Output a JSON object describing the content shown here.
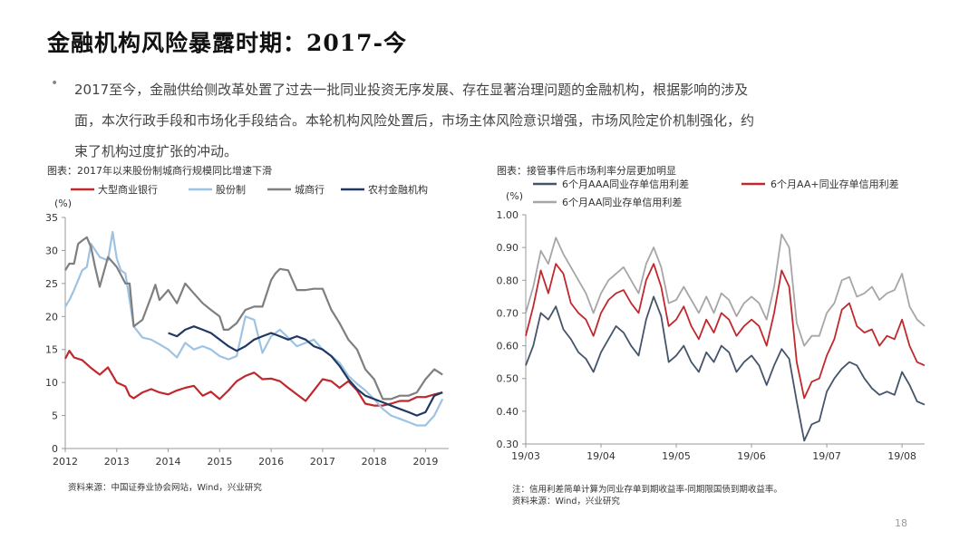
{
  "title": "金融机构风险暴露时期：2017-今",
  "bullet_lines": [
    "2017至今，金融供给侧改革处置了过去一批同业投资无序发展、存在显著治理问题的金融机构，根据影响的涉及",
    "面，本次行政手段和市场化手段结合。本轮机构风险处置后，市场主体风险意识增强，市场风险定价机制强化，约",
    "束了机构过度扩张的冲动。"
  ],
  "page_number": "18",
  "chart_data": [
    {
      "type": "line",
      "caption": "图表：2017年以来股份制城商行规模同比增速下滑",
      "ylabel": "(%)",
      "ylim": [
        0,
        35
      ],
      "yticks": [
        0,
        5,
        10,
        15,
        20,
        25,
        30,
        35
      ],
      "xlim": [
        2012,
        2019.45
      ],
      "xticks": [
        2012,
        2013,
        2014,
        2015,
        2016,
        2017,
        2018,
        2019
      ],
      "grid": false,
      "legend_position": "top",
      "source": "资料来源：中国证券业协会网站，Wind，兴业研究",
      "colors": [
        "#C0282D",
        "#9EC3E2",
        "#7F7F7F",
        "#1F3864"
      ],
      "series": [
        {
          "name": "大型商业银行",
          "color": "#C0282D",
          "x": [
            2012,
            2012.08,
            2012.17,
            2012.33,
            2012.5,
            2012.67,
            2012.83,
            2013,
            2013.17,
            2013.25,
            2013.33,
            2013.5,
            2013.67,
            2013.83,
            2014,
            2014.17,
            2014.33,
            2014.5,
            2014.67,
            2014.83,
            2015,
            2015.17,
            2015.33,
            2015.5,
            2015.67,
            2015.83,
            2016,
            2016.17,
            2016.33,
            2016.5,
            2016.67,
            2016.83,
            2017,
            2017.17,
            2017.33,
            2017.5,
            2017.67,
            2017.83,
            2018,
            2018.17,
            2018.33,
            2018.5,
            2018.67,
            2018.83,
            2019,
            2019.17,
            2019.33
          ],
          "values": [
            13.6,
            14.8,
            13.8,
            13.4,
            12.2,
            11.2,
            12.3,
            10,
            9.4,
            8,
            7.6,
            8.5,
            9,
            8.5,
            8.2,
            8.8,
            9.2,
            9.5,
            8,
            8.6,
            7.5,
            8.8,
            10.2,
            11,
            11.5,
            10.5,
            10.6,
            10.2,
            9.2,
            8.2,
            7.2,
            8.8,
            10.5,
            10.2,
            9.2,
            10.2,
            8.8,
            6.8,
            6.5,
            6.5,
            6.8,
            7.2,
            7.2,
            7.8,
            7.8,
            8.2,
            8.5
          ]
        },
        {
          "name": "股份制",
          "color": "#9EC3E2",
          "x": [
            2012,
            2012.08,
            2012.17,
            2012.33,
            2012.42,
            2012.5,
            2012.67,
            2012.83,
            2012.92,
            2013,
            2013.08,
            2013.17,
            2013.33,
            2013.5,
            2013.67,
            2013.83,
            2014,
            2014.17,
            2014.33,
            2014.5,
            2014.67,
            2014.83,
            2015,
            2015.17,
            2015.33,
            2015.5,
            2015.67,
            2015.83,
            2016,
            2016.17,
            2016.33,
            2016.5,
            2016.67,
            2016.83,
            2017,
            2017.17,
            2017.33,
            2017.5,
            2017.67,
            2017.83,
            2018,
            2018.17,
            2018.33,
            2018.5,
            2018.67,
            2018.83,
            2019,
            2019.17,
            2019.33
          ],
          "values": [
            21.5,
            22.5,
            24,
            27,
            27.5,
            31,
            29,
            28.5,
            32.8,
            28.8,
            27,
            26.5,
            18.5,
            16.8,
            16.5,
            15.8,
            15,
            13.8,
            16,
            15,
            15.5,
            15,
            14,
            13.5,
            14,
            20,
            19.5,
            14.5,
            17,
            18,
            16.8,
            15.5,
            16,
            16.5,
            15,
            14,
            13,
            11,
            9.8,
            8.8,
            7.5,
            6,
            5,
            4.5,
            4,
            3.5,
            3.5,
            5,
            7.5
          ]
        },
        {
          "name": "城商行",
          "color": "#7F7F7F",
          "x": [
            2012,
            2012.08,
            2012.17,
            2012.25,
            2012.33,
            2012.42,
            2012.5,
            2012.58,
            2012.67,
            2012.83,
            2013,
            2013.17,
            2013.25,
            2013.33,
            2013.5,
            2013.67,
            2013.75,
            2013.83,
            2014,
            2014.17,
            2014.33,
            2014.5,
            2014.67,
            2014.83,
            2015,
            2015.08,
            2015.17,
            2015.33,
            2015.5,
            2015.67,
            2015.83,
            2016,
            2016.08,
            2016.17,
            2016.33,
            2016.5,
            2016.67,
            2016.83,
            2017,
            2017.17,
            2017.33,
            2017.5,
            2017.67,
            2017.83,
            2018,
            2018.17,
            2018.33,
            2018.5,
            2018.67,
            2018.83,
            2019,
            2019.17,
            2019.33
          ],
          "values": [
            27,
            28,
            28,
            31,
            31.5,
            32,
            30.5,
            27.5,
            24.5,
            29,
            27.5,
            25,
            25,
            18.5,
            19.5,
            23,
            24.8,
            22.5,
            24,
            22,
            25,
            23.5,
            22,
            21,
            20,
            18,
            18,
            19,
            21,
            21.5,
            21.5,
            25.5,
            26.5,
            27.2,
            27,
            24,
            24,
            24.2,
            24.2,
            21,
            19,
            16.5,
            15,
            12,
            10.5,
            7.5,
            7.5,
            8,
            8,
            8.5,
            10.5,
            12,
            11.2
          ]
        },
        {
          "name": "农村金融机构",
          "color": "#1F3864",
          "x": [
            2014,
            2014.17,
            2014.33,
            2014.5,
            2014.67,
            2014.83,
            2015,
            2015.17,
            2015.33,
            2015.5,
            2015.67,
            2015.83,
            2016,
            2016.17,
            2016.33,
            2016.5,
            2016.67,
            2016.83,
            2017,
            2017.17,
            2017.33,
            2017.5,
            2017.67,
            2017.83,
            2018,
            2018.17,
            2018.33,
            2018.5,
            2018.67,
            2018.83,
            2019,
            2019.17,
            2019.33
          ],
          "values": [
            17.5,
            17,
            18,
            18.5,
            18,
            17.5,
            16.5,
            15.5,
            14.8,
            15.5,
            16.5,
            17,
            17.5,
            17,
            16.5,
            17,
            16.5,
            15.5,
            15,
            14,
            12.5,
            10.5,
            9,
            8,
            7.5,
            7,
            6.5,
            6,
            5.5,
            5,
            5.5,
            8,
            8.5
          ]
        }
      ]
    },
    {
      "type": "line",
      "caption": "图表：接管事件后市场利率分层更加明显",
      "ylabel": "(%)",
      "ylim": [
        0.3,
        1.0
      ],
      "yticks": [
        0.3,
        0.4,
        0.5,
        0.6,
        0.7,
        0.8,
        0.9,
        1.0
      ],
      "xticks": [
        "19/03",
        "19/04",
        "19/05",
        "19/06",
        "19/07",
        "19/08"
      ],
      "grid": false,
      "legend_position": "top",
      "note": "注：信用利差简单计算为同业存单到期收益率-同期限国债到期收益率。",
      "source": "资料来源：Wind，兴业研究",
      "colors": [
        "#44546A",
        "#C0282D",
        "#A6A6A6"
      ],
      "series": [
        {
          "name": "6个月AAA同业存单信用利差",
          "color": "#44546A",
          "x": [
            0,
            0.1,
            0.2,
            0.3,
            0.4,
            0.5,
            0.6,
            0.7,
            0.8,
            0.9,
            1.0,
            1.1,
            1.2,
            1.3,
            1.4,
            1.5,
            1.6,
            1.7,
            1.8,
            1.9,
            2.0,
            2.1,
            2.2,
            2.3,
            2.4,
            2.5,
            2.6,
            2.7,
            2.8,
            2.9,
            3.0,
            3.1,
            3.2,
            3.3,
            3.4,
            3.5,
            3.6,
            3.7,
            3.8,
            3.9,
            4.0,
            4.1,
            4.2,
            4.3,
            4.4,
            4.5,
            4.6,
            4.7,
            4.8,
            4.9,
            5.0,
            5.1,
            5.2,
            5.3
          ],
          "values": [
            0.54,
            0.6,
            0.7,
            0.68,
            0.72,
            0.65,
            0.62,
            0.58,
            0.56,
            0.52,
            0.58,
            0.62,
            0.66,
            0.64,
            0.6,
            0.57,
            0.68,
            0.75,
            0.69,
            0.55,
            0.57,
            0.6,
            0.55,
            0.52,
            0.58,
            0.55,
            0.6,
            0.58,
            0.52,
            0.55,
            0.57,
            0.54,
            0.48,
            0.54,
            0.59,
            0.56,
            0.43,
            0.31,
            0.36,
            0.37,
            0.46,
            0.5,
            0.53,
            0.55,
            0.54,
            0.5,
            0.47,
            0.45,
            0.46,
            0.45,
            0.52,
            0.48,
            0.43,
            0.42
          ]
        },
        {
          "name": "6个月AA+同业存单信用利差",
          "color": "#C0282D",
          "x": [
            0,
            0.1,
            0.2,
            0.3,
            0.4,
            0.5,
            0.6,
            0.7,
            0.8,
            0.9,
            1.0,
            1.1,
            1.2,
            1.3,
            1.4,
            1.5,
            1.6,
            1.7,
            1.8,
            1.9,
            2.0,
            2.1,
            2.2,
            2.3,
            2.4,
            2.5,
            2.6,
            2.7,
            2.8,
            2.9,
            3.0,
            3.1,
            3.2,
            3.3,
            3.4,
            3.5,
            3.6,
            3.7,
            3.8,
            3.9,
            4.0,
            4.1,
            4.2,
            4.3,
            4.4,
            4.5,
            4.6,
            4.7,
            4.8,
            4.9,
            5.0,
            5.1,
            5.2,
            5.3
          ],
          "values": [
            0.63,
            0.72,
            0.83,
            0.76,
            0.85,
            0.82,
            0.73,
            0.7,
            0.68,
            0.63,
            0.7,
            0.74,
            0.76,
            0.77,
            0.73,
            0.7,
            0.8,
            0.85,
            0.78,
            0.66,
            0.68,
            0.72,
            0.66,
            0.62,
            0.68,
            0.64,
            0.7,
            0.68,
            0.63,
            0.66,
            0.68,
            0.66,
            0.6,
            0.7,
            0.83,
            0.78,
            0.55,
            0.44,
            0.49,
            0.5,
            0.57,
            0.62,
            0.71,
            0.73,
            0.66,
            0.64,
            0.65,
            0.6,
            0.63,
            0.62,
            0.68,
            0.6,
            0.55,
            0.54
          ]
        },
        {
          "name": "6个月AA同业存单信用利差",
          "color": "#A6A6A6",
          "x": [
            0,
            0.1,
            0.2,
            0.3,
            0.4,
            0.5,
            0.6,
            0.7,
            0.8,
            0.9,
            1.0,
            1.1,
            1.2,
            1.3,
            1.4,
            1.5,
            1.6,
            1.7,
            1.8,
            1.9,
            2.0,
            2.1,
            2.2,
            2.3,
            2.4,
            2.5,
            2.6,
            2.7,
            2.8,
            2.9,
            3.0,
            3.1,
            3.2,
            3.3,
            3.4,
            3.5,
            3.6,
            3.7,
            3.8,
            3.9,
            4.0,
            4.1,
            4.2,
            4.3,
            4.4,
            4.5,
            4.6,
            4.7,
            4.8,
            4.9,
            5.0,
            5.1,
            5.2,
            5.3
          ],
          "values": [
            0.7,
            0.78,
            0.89,
            0.85,
            0.93,
            0.88,
            0.84,
            0.8,
            0.76,
            0.7,
            0.76,
            0.8,
            0.82,
            0.84,
            0.8,
            0.76,
            0.85,
            0.9,
            0.84,
            0.73,
            0.74,
            0.78,
            0.74,
            0.7,
            0.75,
            0.7,
            0.76,
            0.74,
            0.69,
            0.73,
            0.75,
            0.73,
            0.68,
            0.78,
            0.94,
            0.9,
            0.67,
            0.6,
            0.63,
            0.63,
            0.7,
            0.73,
            0.8,
            0.81,
            0.75,
            0.76,
            0.78,
            0.74,
            0.76,
            0.77,
            0.82,
            0.72,
            0.68,
            0.66
          ]
        }
      ]
    }
  ]
}
